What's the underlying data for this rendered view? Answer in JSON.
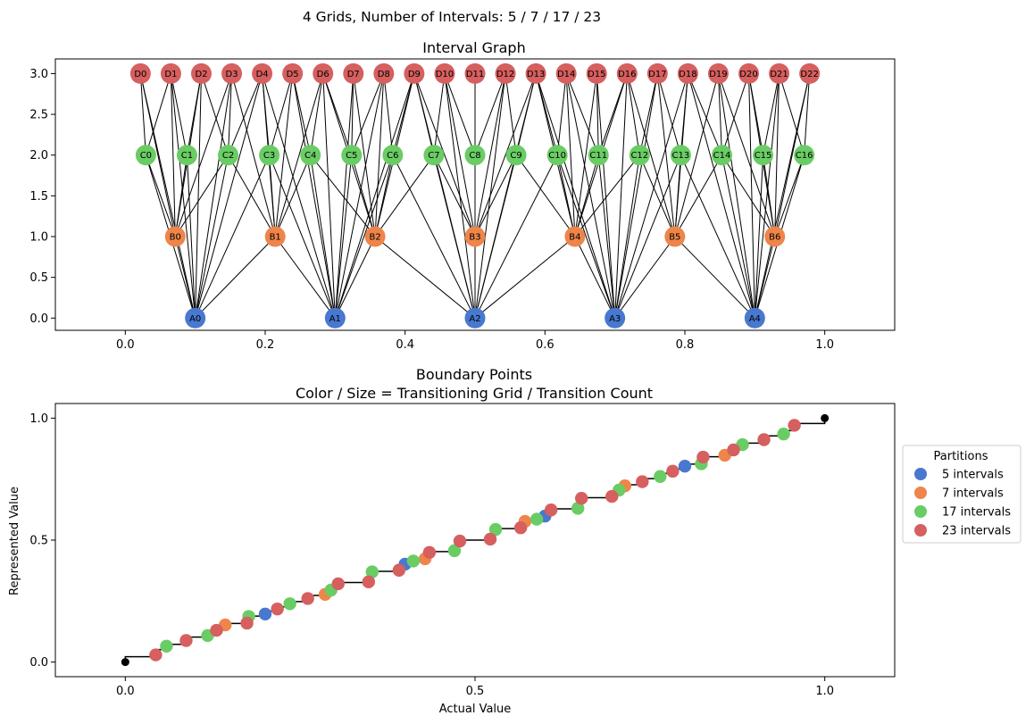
{
  "figure": {
    "suptitle": "4 Grids, Number of Intervals: 5 / 7 / 17 / 23"
  },
  "chart_data": [
    {
      "type": "network",
      "title": "Interval Graph",
      "xlim": [
        -0.1,
        1.1
      ],
      "ylim": [
        -0.15,
        3.18
      ],
      "xticks": [
        0.0,
        0.2,
        0.4,
        0.6,
        0.8,
        1.0
      ],
      "xtick_labels": [
        "0.0",
        "0.2",
        "0.4",
        "0.6",
        "0.8",
        "1.0"
      ],
      "yticks": [
        0.0,
        0.5,
        1.0,
        1.5,
        2.0,
        2.5,
        3.0
      ],
      "ytick_labels": [
        "0.0",
        "0.5",
        "1.0",
        "1.5",
        "2.0",
        "2.5",
        "3.0"
      ],
      "levels": [
        {
          "prefix": "A",
          "y": 0,
          "count": 5,
          "color": "#4878d0"
        },
        {
          "prefix": "B",
          "y": 1,
          "count": 7,
          "color": "#ee854a"
        },
        {
          "prefix": "C",
          "y": 2,
          "count": 17,
          "color": "#6acc64"
        },
        {
          "prefix": "D",
          "y": 3,
          "count": 23,
          "color": "#d65f5f"
        }
      ],
      "node_labels": {
        "A": [
          "A0",
          "A1",
          "A2",
          "A3",
          "A4"
        ],
        "B": [
          "B0",
          "B1",
          "B2",
          "B3",
          "B4",
          "B5",
          "B6"
        ],
        "C": [
          "C0",
          "C1",
          "C2",
          "C3",
          "C4",
          "C5",
          "C6",
          "C7",
          "C8",
          "C9",
          "C10",
          "C11",
          "C12",
          "C13",
          "C14",
          "C15",
          "C16"
        ],
        "D": [
          "D0",
          "D1",
          "D2",
          "D3",
          "D4",
          "D5",
          "D6",
          "D7",
          "D8",
          "D9",
          "D10",
          "D11",
          "D12",
          "D13",
          "D14",
          "D15",
          "D16",
          "D17",
          "D18",
          "D19",
          "D20",
          "D21",
          "D22"
        ]
      },
      "edge_rule": "intervals overlap on [0,1] between nodes of different levels",
      "edge_color": "#000000",
      "grid": false
    },
    {
      "type": "scatter",
      "title": "Boundary Points",
      "subtitle": "Color / Size = Transitioning Grid / Transition Count",
      "xlabel": "Actual Value",
      "ylabel": "Represented Value",
      "xlim": [
        -0.1,
        1.1
      ],
      "ylim": [
        -0.06,
        1.06
      ],
      "xticks": [
        0.0,
        0.5,
        1.0
      ],
      "xtick_labels": [
        "0.0",
        "0.5",
        "1.0"
      ],
      "yticks": [
        0.0,
        0.5,
        1.0
      ],
      "ytick_labels": [
        "0.0",
        "0.5",
        "1.0"
      ],
      "legend": {
        "title": "Partitions",
        "placement": "outside-right"
      },
      "step_line": "stair-step from (0,0) to (1,1), one step at every boundary point, level = midpoint between successive boundaries",
      "endpoints": [
        {
          "x": 0.0,
          "y": 0.0
        },
        {
          "x": 1.0,
          "y": 1.0
        }
      ],
      "series": [
        {
          "name": "5 intervals",
          "color": "#4878d0",
          "grid_intervals": 5
        },
        {
          "name": "7 intervals",
          "color": "#ee854a",
          "grid_intervals": 7
        },
        {
          "name": "17 intervals",
          "color": "#6acc64",
          "grid_intervals": 17
        },
        {
          "name": "23 intervals",
          "color": "#d65f5f",
          "grid_intervals": 23
        }
      ],
      "points_rule": "boundary points at k/n for each grid n; points drawn in series order so later grids overlay earlier ones",
      "grid": false
    }
  ]
}
